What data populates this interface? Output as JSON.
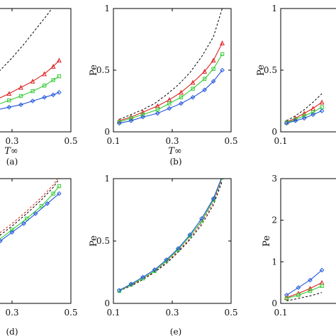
{
  "chart_data": [
    {
      "id": "a",
      "type": "line",
      "panel_label": "(a)",
      "xlabel": "T∞",
      "ylabel": "",
      "xlim": [
        0.1,
        0.5
      ],
      "ylim": [
        0,
        1
      ],
      "xticks": [
        0.3,
        0.5
      ],
      "xtick_labels": [
        "0.3",
        "0.5"
      ],
      "yticks": [],
      "ytick_labels": [],
      "series": [
        {
          "color": "#000000",
          "style": "dashed",
          "marker": "none",
          "x": [
            0.1,
            0.14,
            0.18,
            0.22,
            0.26,
            0.3,
            0.34,
            0.38,
            0.42,
            0.45
          ],
          "y": [
            0.2,
            0.26,
            0.33,
            0.41,
            0.5,
            0.6,
            0.71,
            0.83,
            0.95,
            1.05
          ]
        },
        {
          "color": "#e02020",
          "style": "solid",
          "marker": "triangle",
          "x": [
            0.1,
            0.12,
            0.17,
            0.21,
            0.25,
            0.29,
            0.33,
            0.37,
            0.41,
            0.44,
            0.46
          ],
          "y": [
            0.14,
            0.155,
            0.19,
            0.225,
            0.265,
            0.31,
            0.36,
            0.41,
            0.47,
            0.53,
            0.58
          ]
        },
        {
          "color": "#33cc33",
          "style": "solid",
          "marker": "square",
          "x": [
            0.1,
            0.12,
            0.17,
            0.21,
            0.25,
            0.29,
            0.33,
            0.37,
            0.41,
            0.44,
            0.46
          ],
          "y": [
            0.13,
            0.14,
            0.165,
            0.19,
            0.22,
            0.255,
            0.29,
            0.33,
            0.375,
            0.42,
            0.45
          ]
        },
        {
          "color": "#2255dd",
          "style": "solid",
          "marker": "diamond",
          "x": [
            0.1,
            0.12,
            0.17,
            0.21,
            0.25,
            0.29,
            0.33,
            0.37,
            0.41,
            0.44,
            0.46
          ],
          "y": [
            0.11,
            0.12,
            0.14,
            0.16,
            0.18,
            0.2,
            0.22,
            0.25,
            0.28,
            0.3,
            0.32
          ]
        }
      ]
    },
    {
      "id": "b",
      "type": "line",
      "panel_label": "(b)",
      "xlabel": "T∞",
      "ylabel": "Pe",
      "xlim": [
        0.1,
        0.5
      ],
      "ylim": [
        0,
        1
      ],
      "xticks": [
        0.1,
        0.3,
        0.5
      ],
      "xtick_labels": [
        "0.1",
        "0.3",
        "0.5"
      ],
      "yticks": [
        0,
        0.5,
        1
      ],
      "ytick_labels": [
        "0",
        "0.5",
        "1"
      ],
      "series": [
        {
          "color": "#000000",
          "style": "dashed",
          "marker": "none",
          "x": [
            0.12,
            0.16,
            0.2,
            0.24,
            0.28,
            0.32,
            0.36,
            0.4,
            0.44,
            0.47
          ],
          "y": [
            0.1,
            0.14,
            0.18,
            0.23,
            0.3,
            0.38,
            0.48,
            0.61,
            0.77,
            1.0
          ]
        },
        {
          "color": "#e02020",
          "style": "solid",
          "marker": "triangle",
          "x": [
            0.12,
            0.16,
            0.2,
            0.25,
            0.29,
            0.33,
            0.37,
            0.41,
            0.44,
            0.47
          ],
          "y": [
            0.09,
            0.12,
            0.16,
            0.21,
            0.26,
            0.32,
            0.4,
            0.49,
            0.58,
            0.72
          ]
        },
        {
          "color": "#33cc33",
          "style": "solid",
          "marker": "square",
          "x": [
            0.12,
            0.16,
            0.2,
            0.25,
            0.29,
            0.33,
            0.37,
            0.41,
            0.44,
            0.47
          ],
          "y": [
            0.08,
            0.11,
            0.14,
            0.18,
            0.23,
            0.28,
            0.35,
            0.43,
            0.51,
            0.63
          ]
        },
        {
          "color": "#2255dd",
          "style": "solid",
          "marker": "diamond",
          "x": [
            0.12,
            0.16,
            0.2,
            0.25,
            0.29,
            0.33,
            0.37,
            0.41,
            0.44,
            0.47
          ],
          "y": [
            0.07,
            0.09,
            0.12,
            0.15,
            0.19,
            0.23,
            0.28,
            0.34,
            0.41,
            0.5
          ]
        }
      ]
    },
    {
      "id": "c",
      "type": "line",
      "panel_label": "",
      "xlabel": "",
      "ylabel": "Pe",
      "xlim": [
        0.1,
        0.5
      ],
      "ylim": [
        0,
        1
      ],
      "xticks": [
        0.1
      ],
      "xtick_labels": [
        "0.1"
      ],
      "yticks": [
        0,
        0.5,
        1
      ],
      "ytick_labels": [
        "0",
        "0.5",
        "1"
      ],
      "series": [
        {
          "color": "#000000",
          "style": "dashed",
          "marker": "none",
          "x": [
            0.12,
            0.15,
            0.18,
            0.21,
            0.24
          ],
          "y": [
            0.09,
            0.13,
            0.18,
            0.24,
            0.31
          ]
        },
        {
          "color": "#e02020",
          "style": "solid",
          "marker": "triangle",
          "x": [
            0.12,
            0.15,
            0.18,
            0.21,
            0.24
          ],
          "y": [
            0.08,
            0.11,
            0.15,
            0.19,
            0.24
          ]
        },
        {
          "color": "#33cc33",
          "style": "solid",
          "marker": "square",
          "x": [
            0.12,
            0.15,
            0.18,
            0.21,
            0.24
          ],
          "y": [
            0.075,
            0.1,
            0.13,
            0.16,
            0.2
          ]
        },
        {
          "color": "#2255dd",
          "style": "solid",
          "marker": "diamond",
          "x": [
            0.12,
            0.15,
            0.18,
            0.21,
            0.24
          ],
          "y": [
            0.07,
            0.09,
            0.11,
            0.14,
            0.17
          ]
        }
      ]
    },
    {
      "id": "d",
      "type": "line",
      "panel_label": "(d)",
      "xlabel": "",
      "ylabel": "",
      "xlim": [
        0.1,
        0.5
      ],
      "ylim": [
        0,
        1
      ],
      "xticks": [
        0.3,
        0.5
      ],
      "xtick_labels": [
        "0.3",
        "0.5"
      ],
      "yticks": [],
      "ytick_labels": [],
      "series": [
        {
          "color": "#e02020",
          "style": "dashed",
          "marker": "none",
          "x": [
            0.1,
            0.15,
            0.2,
            0.25,
            0.3,
            0.35,
            0.4,
            0.44,
            0.46
          ],
          "y": [
            0.34,
            0.4,
            0.47,
            0.55,
            0.64,
            0.74,
            0.85,
            0.95,
            1.02
          ]
        },
        {
          "color": "#000000",
          "style": "dashed",
          "marker": "none",
          "x": [
            0.1,
            0.15,
            0.2,
            0.25,
            0.3,
            0.35,
            0.4,
            0.44,
            0.46
          ],
          "y": [
            0.32,
            0.38,
            0.45,
            0.53,
            0.62,
            0.72,
            0.83,
            0.93,
            1.0
          ]
        },
        {
          "color": "#33cc33",
          "style": "solid",
          "marker": "square",
          "x": [
            0.1,
            0.15,
            0.2,
            0.25,
            0.3,
            0.35,
            0.4,
            0.44,
            0.46
          ],
          "y": [
            0.3,
            0.36,
            0.43,
            0.5,
            0.59,
            0.68,
            0.78,
            0.88,
            0.94
          ]
        },
        {
          "color": "#2255dd",
          "style": "solid",
          "marker": "diamond",
          "x": [
            0.1,
            0.14,
            0.18,
            0.22,
            0.26,
            0.3,
            0.34,
            0.38,
            0.42,
            0.46
          ],
          "y": [
            0.28,
            0.33,
            0.38,
            0.44,
            0.5,
            0.57,
            0.64,
            0.72,
            0.8,
            0.88
          ]
        }
      ]
    },
    {
      "id": "e",
      "type": "line",
      "panel_label": "(e)",
      "xlabel": "",
      "ylabel": "Pe",
      "xlim": [
        0.1,
        0.5
      ],
      "ylim": [
        0,
        1
      ],
      "xticks": [
        0.1,
        0.3,
        0.5
      ],
      "xtick_labels": [
        "0.1",
        "0.3",
        "0.5"
      ],
      "yticks": [
        0,
        0.5,
        1
      ],
      "ytick_labels": [
        "0",
        "0.5",
        "1"
      ],
      "series": [
        {
          "color": "#000000",
          "style": "dashed",
          "marker": "none",
          "x": [
            0.12,
            0.16,
            0.2,
            0.24,
            0.28,
            0.32,
            0.36,
            0.4,
            0.44,
            0.47
          ],
          "y": [
            0.1,
            0.14,
            0.19,
            0.25,
            0.32,
            0.41,
            0.51,
            0.63,
            0.79,
            0.98
          ]
        },
        {
          "color": "#e02020",
          "style": "dashed",
          "marker": "none",
          "x": [
            0.12,
            0.16,
            0.2,
            0.24,
            0.28,
            0.32,
            0.36,
            0.4,
            0.44,
            0.47
          ],
          "y": [
            0.1,
            0.145,
            0.195,
            0.255,
            0.33,
            0.42,
            0.52,
            0.65,
            0.81,
            1.0
          ]
        },
        {
          "color": "#33cc33",
          "style": "solid",
          "marker": "square",
          "x": [
            0.12,
            0.16,
            0.2,
            0.24,
            0.28,
            0.32,
            0.36,
            0.4,
            0.44,
            0.47
          ],
          "y": [
            0.1,
            0.15,
            0.2,
            0.26,
            0.34,
            0.43,
            0.54,
            0.66,
            0.83,
            1.01
          ]
        },
        {
          "color": "#2255dd",
          "style": "solid",
          "marker": "diamond",
          "x": [
            0.12,
            0.16,
            0.2,
            0.24,
            0.28,
            0.32,
            0.36,
            0.4,
            0.44,
            0.47
          ],
          "y": [
            0.105,
            0.155,
            0.21,
            0.27,
            0.35,
            0.44,
            0.55,
            0.68,
            0.84,
            1.02
          ]
        }
      ]
    },
    {
      "id": "f",
      "type": "line",
      "panel_label": "",
      "xlabel": "",
      "ylabel": "Pe",
      "xlim": [
        0.1,
        0.5
      ],
      "ylim": [
        0,
        3
      ],
      "xticks": [
        0.1
      ],
      "xtick_labels": [
        "0.1"
      ],
      "yticks": [
        0,
        1,
        2,
        3
      ],
      "ytick_labels": [
        "0",
        "1",
        "2",
        "3"
      ],
      "series": [
        {
          "color": "#2255dd",
          "style": "solid",
          "marker": "diamond",
          "x": [
            0.12,
            0.16,
            0.2,
            0.24
          ],
          "y": [
            0.2,
            0.38,
            0.56,
            0.8
          ]
        },
        {
          "color": "#e02020",
          "style": "solid",
          "marker": "triangle",
          "x": [
            0.12,
            0.16,
            0.2,
            0.24
          ],
          "y": [
            0.14,
            0.24,
            0.36,
            0.5
          ]
        },
        {
          "color": "#33cc33",
          "style": "solid",
          "marker": "square",
          "x": [
            0.12,
            0.16,
            0.2,
            0.24
          ],
          "y": [
            0.12,
            0.2,
            0.3,
            0.42
          ]
        },
        {
          "color": "#000000",
          "style": "dashed",
          "marker": "none",
          "x": [
            0.12,
            0.16,
            0.2,
            0.24
          ],
          "y": [
            0.06,
            0.12,
            0.18,
            0.26
          ]
        }
      ]
    }
  ]
}
